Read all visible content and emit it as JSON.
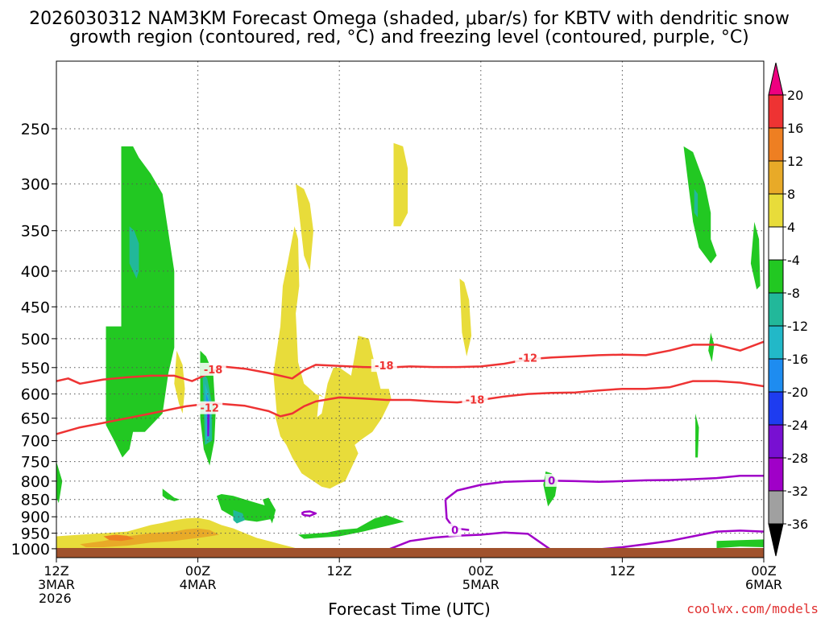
{
  "chart_data": {
    "type": "heatmap",
    "title_line1": "2026030312 NAM3KM Forecast Omega (shaded, μbar/s) for KBTV with dendritic snow",
    "title_line2": "growth region (contoured, red, °C) and freezing level (contoured, purple, °C)",
    "xlabel": "Forecast Time (UTC)",
    "credit": "coolwx.com/models",
    "x_ticks": [
      {
        "hour": 0,
        "line1": "12Z",
        "line2": "3MAR",
        "line3": "2026"
      },
      {
        "hour": 12,
        "line1": "00Z",
        "line2": "4MAR",
        "line3": ""
      },
      {
        "hour": 24,
        "line1": "12Z",
        "line2": "",
        "line3": ""
      },
      {
        "hour": 36,
        "line1": "00Z",
        "line2": "5MAR",
        "line3": ""
      },
      {
        "hour": 48,
        "line1": "12Z",
        "line2": "",
        "line3": ""
      },
      {
        "hour": 60,
        "line1": "00Z",
        "line2": "6MAR",
        "line3": ""
      }
    ],
    "x_range_hours": [
      0,
      60
    ],
    "y_ticks_hpa": [
      250,
      300,
      350,
      400,
      450,
      500,
      550,
      600,
      650,
      700,
      750,
      800,
      850,
      900,
      950,
      1000
    ],
    "y_range_hpa": [
      200,
      1030
    ],
    "y_scale": "log-pressure",
    "grid": "dotted",
    "colorbar_ticks": [
      20,
      16,
      12,
      8,
      4,
      -4,
      -8,
      -12,
      -16,
      -20,
      -24,
      -28,
      -32,
      -36
    ],
    "colorbar_colors": [
      "#ee0080",
      "#ee3333",
      "#ee7f22",
      "#e8aa28",
      "#e8dc3a",
      "#ffffff",
      "#22c822",
      "#22b89a",
      "#22b8c8",
      "#1e8cf0",
      "#1e3cf0",
      "#7810d2",
      "#a000c8",
      "#a0a0a0",
      "#000000"
    ],
    "colors": {
      "ascent_green": "#22c822",
      "ascent_teal": "#22b89a",
      "ascent_cyan": "#22b8c8",
      "ascent_blue": "#1e8cf0",
      "ascent_purple": "#7810d2",
      "descent_yellow": "#e8dc3a",
      "descent_orange": "#ee7f22",
      "ground": "#a0522d",
      "dgz_contour": "#ee3333",
      "freezing_contour": "#a000c8",
      "credit_text": "#e03030"
    },
    "contour_labels": [
      {
        "text": "-18",
        "color": "dgz"
      },
      {
        "text": "-12",
        "color": "dgz"
      },
      {
        "text": "-18",
        "color": "dgz"
      },
      {
        "text": "-12",
        "color": "dgz"
      },
      {
        "text": "-18",
        "color": "dgz"
      },
      {
        "text": "0",
        "color": "freeze"
      },
      {
        "text": "0",
        "color": "freeze"
      }
    ],
    "contours": {
      "dgz_minus18_upper": {
        "hours": [
          0,
          1,
          2,
          4,
          6,
          8,
          10,
          11.5,
          13,
          14,
          16,
          18,
          20,
          21,
          22,
          24,
          26,
          28,
          30,
          32,
          34,
          36,
          38,
          40,
          42,
          44,
          46,
          48,
          50,
          52,
          54,
          56,
          58,
          60
        ],
        "p": [
          575,
          570,
          580,
          572,
          568,
          565,
          565,
          575,
          560,
          548,
          552,
          560,
          570,
          555,
          545,
          547,
          549,
          550,
          548,
          549,
          549,
          548,
          543,
          535,
          532,
          530,
          528,
          527,
          528,
          520,
          510,
          510,
          520,
          505
        ]
      },
      "dgz_minus12_lower": {
        "hours": [
          0,
          2,
          4,
          6,
          8,
          10,
          11,
          12,
          13,
          14,
          16,
          18,
          19,
          20,
          21,
          22,
          24,
          26,
          28,
          30,
          32,
          34,
          36,
          38,
          40,
          42,
          44,
          46,
          48,
          50,
          52,
          54,
          56,
          58,
          60
        ],
        "p": [
          685,
          670,
          660,
          650,
          640,
          630,
          625,
          622,
          618,
          620,
          624,
          635,
          646,
          640,
          625,
          615,
          607,
          609,
          612,
          612,
          615,
          617,
          612,
          605,
          600,
          598,
          597,
          593,
          590,
          590,
          587,
          575,
          575,
          578,
          585
        ]
      },
      "freezing_mid": {
        "hours": [
          33,
          34,
          36,
          38,
          40,
          42,
          44,
          46,
          48,
          50,
          52,
          54,
          56,
          58,
          60
        ],
        "p": [
          850,
          825,
          810,
          802,
          800,
          799,
          800,
          802,
          800,
          798,
          797,
          795,
          792,
          786,
          786
        ]
      },
      "freezing_mid_kink": {
        "hours": [
          33,
          33.1,
          33.5,
          34,
          34.5,
          35
        ],
        "p": [
          850,
          905,
          925,
          935,
          938,
          940
        ]
      },
      "freezing_low": {
        "hours": [
          28,
          30,
          32,
          34,
          36,
          38,
          40,
          42,
          44,
          46,
          48,
          50,
          52,
          54,
          56,
          58,
          60
        ],
        "p": [
          1005,
          975,
          964,
          958,
          955,
          948,
          952,
          1005,
          1005,
          1002,
          995,
          985,
          975,
          960,
          945,
          942,
          945
        ]
      },
      "freezing_loop": {
        "hours": [
          20.8,
          21,
          21.5,
          22,
          21.5,
          21,
          20.8
        ],
        "p": [
          890,
          886,
          884,
          890,
          897,
          895,
          890
        ]
      }
    },
    "shaded_regions": [
      {
        "omega": -8,
        "hours": [
          5.5,
          6.5,
          7,
          8,
          9,
          10,
          10,
          9.5,
          9,
          7.5,
          6.5,
          6.2,
          5.6,
          4.9,
          4.2,
          4.2,
          5.5
        ],
        "p": [
          265,
          265,
          275,
          290,
          310,
          400,
          515,
          560,
          640,
          680,
          680,
          720,
          740,
          700,
          665,
          480,
          480
        ]
      },
      {
        "omega": -12,
        "hours": [
          6.2,
          6.6,
          7,
          7,
          6.8,
          6.2,
          6.2
        ],
        "p": [
          345,
          350,
          365,
          400,
          410,
          390,
          345
        ]
      },
      {
        "omega": -8,
        "hours": [
          12.2,
          12.7,
          13.3,
          13.5,
          13.4,
          13,
          12.5,
          12.2,
          12.2
        ],
        "p": [
          520,
          530,
          560,
          640,
          700,
          760,
          720,
          650,
          520
        ]
      },
      {
        "omega": -12,
        "hours": [
          12.4,
          12.8,
          13.2,
          13.2,
          12.6,
          12.4
        ],
        "p": [
          560,
          570,
          620,
          700,
          710,
          560
        ]
      },
      {
        "omega": -16,
        "hours": [
          12.6,
          12.9,
          13.1,
          13,
          12.7,
          12.6
        ],
        "p": [
          580,
          600,
          640,
          690,
          700,
          580
        ]
      },
      {
        "omega": -20,
        "hours": [
          12.7,
          13,
          13,
          12.8,
          12.7
        ],
        "p": [
          600,
          620,
          670,
          690,
          600
        ]
      },
      {
        "omega": -28,
        "hours": [
          12.8,
          13,
          12.95,
          12.8,
          12.8
        ],
        "p": [
          615,
          640,
          690,
          690,
          615
        ]
      },
      {
        "omega": -8,
        "hours": [
          0,
          0.5,
          0.2,
          0,
          0
        ],
        "p": [
          750,
          800,
          860,
          845,
          750
        ]
      },
      {
        "omega": -8,
        "hours": [
          9,
          10,
          10.5,
          10,
          9.3,
          9,
          9
        ],
        "p": [
          820,
          845,
          850,
          855,
          848,
          840,
          820
        ]
      },
      {
        "omega": -8,
        "hours": [
          13.6,
          14,
          15,
          16,
          17,
          18,
          18.5,
          17,
          16,
          15,
          14,
          13.6
        ],
        "p": [
          840,
          835,
          840,
          850,
          860,
          870,
          905,
          915,
          910,
          900,
          880,
          840
        ]
      },
      {
        "omega": -12,
        "hours": [
          15,
          15.8,
          16,
          15.3,
          15,
          15
        ],
        "p": [
          880,
          890,
          910,
          920,
          910,
          880
        ]
      },
      {
        "omega": -8,
        "hours": [
          17.5,
          18,
          18.6,
          18.3,
          17.8,
          17.5
        ],
        "p": [
          850,
          845,
          880,
          920,
          880,
          850
        ]
      },
      {
        "omega": -8,
        "hours": [
          20.5,
          23,
          24,
          25.5,
          27,
          28,
          29.5,
          26,
          24,
          22,
          21,
          20.5
        ],
        "p": [
          955,
          948,
          940,
          935,
          905,
          895,
          915,
          945,
          960,
          965,
          968,
          955
        ]
      },
      {
        "omega": -8,
        "hours": [
          41.5,
          42,
          42.5,
          42.3,
          41.7,
          41.3,
          41.5
        ],
        "p": [
          775,
          780,
          800,
          840,
          870,
          810,
          775
        ]
      },
      {
        "omega": -8,
        "hours": [
          53.2,
          54,
          55,
          55.5,
          55.5,
          56,
          55.5,
          54.5,
          54,
          53.2
        ],
        "p": [
          265,
          270,
          300,
          330,
          360,
          380,
          390,
          370,
          340,
          265
        ]
      },
      {
        "omega": -12,
        "hours": [
          54.1,
          54.4,
          54.4,
          54.1,
          54.1
        ],
        "p": [
          305,
          310,
          335,
          330,
          305
        ]
      },
      {
        "omega": -8,
        "hours": [
          59.2,
          59.6,
          59.7,
          59.4,
          58.9,
          59.2
        ],
        "p": [
          340,
          360,
          420,
          425,
          390,
          340
        ]
      },
      {
        "omega": -8,
        "hours": [
          55.5,
          55.8,
          55.6,
          55.3,
          55.5
        ],
        "p": [
          490,
          510,
          540,
          520,
          490
        ]
      },
      {
        "omega": -8,
        "hours": [
          54.2,
          54.5,
          54.4,
          54.2,
          54.2
        ],
        "p": [
          640,
          670,
          740,
          740,
          640
        ]
      },
      {
        "omega": -8,
        "hours": [
          56,
          58,
          60,
          60,
          58,
          56,
          56
        ],
        "p": [
          975,
          972,
          970,
          995,
          993,
          998,
          975
        ]
      },
      {
        "omega": 4,
        "hours": [
          10.2,
          10.7,
          10.9,
          10.7,
          10.4,
          10,
          10.2
        ],
        "p": [
          520,
          545,
          590,
          640,
          620,
          580,
          520
        ]
      },
      {
        "omega": 4,
        "hours": [
          19.2,
          19.6,
          20.2,
          20.5,
          20.6,
          20.3,
          20.5,
          21,
          22,
          23,
          23.4,
          22.3,
          22,
          21,
          20.8,
          20,
          19.8,
          18.7,
          18.4,
          19,
          19.2
        ],
        "p": [
          420,
          390,
          345,
          360,
          420,
          460,
          540,
          580,
          600,
          610,
          620,
          600,
          680,
          720,
          745,
          730,
          720,
          640,
          560,
          480,
          420
        ]
      },
      {
        "omega": 4,
        "hours": [
          20.3,
          21,
          21.5,
          21.8,
          21.5,
          21,
          20.3
        ],
        "p": [
          300,
          305,
          320,
          350,
          400,
          380,
          300
        ]
      },
      {
        "omega": 4,
        "hours": [
          18.5,
          20,
          21,
          21.5,
          21.8,
          22,
          22.5,
          23,
          23.5,
          24,
          25,
          25.6,
          26.5,
          27.5,
          28.2,
          28.4,
          27.6,
          26.8,
          26,
          25.3,
          25.6,
          24.5,
          23.8,
          23.2,
          22.5,
          21.8,
          20.8,
          20,
          19.5,
          19,
          18.5
        ],
        "p": [
          640,
          650,
          655,
          650,
          640,
          650,
          640,
          580,
          550,
          550,
          565,
          495,
          500,
          590,
          590,
          610,
          650,
          680,
          695,
          710,
          730,
          800,
          810,
          820,
          815,
          800,
          780,
          740,
          710,
          690,
          640
        ]
      },
      {
        "omega": 4,
        "hours": [
          28.6,
          29.4,
          29.8,
          29.8,
          29.2,
          28.6,
          28.6
        ],
        "p": [
          262,
          265,
          285,
          330,
          345,
          345,
          262
        ]
      },
      {
        "omega": 4,
        "hours": [
          34.2,
          34.6,
          35,
          35.2,
          34.8,
          34.4,
          34.2
        ],
        "p": [
          410,
          415,
          440,
          495,
          530,
          490,
          410
        ]
      },
      {
        "omega": 4,
        "hours": [
          0,
          2,
          4,
          6,
          7,
          8,
          9,
          10,
          11,
          12,
          13,
          14,
          15,
          16,
          17,
          18,
          19,
          20,
          20.5,
          19,
          18,
          16,
          14,
          12,
          10,
          8,
          6,
          4,
          2,
          0,
          0
        ],
        "p": [
          960,
          955,
          950,
          945,
          935,
          925,
          918,
          910,
          905,
          903,
          910,
          925,
          935,
          950,
          965,
          975,
          985,
          995,
          1000,
          1005,
          1003,
          1005,
          1008,
          1010,
          1010,
          1010,
          1010,
          1010,
          1010,
          1010,
          960
        ]
      },
      {
        "omega": 8,
        "hours": [
          2,
          4,
          6,
          8,
          10,
          11,
          12,
          13,
          13.8,
          13,
          12,
          10,
          8,
          6,
          4,
          2.5,
          2
        ],
        "p": [
          985,
          975,
          960,
          950,
          945,
          938,
          935,
          940,
          955,
          960,
          965,
          975,
          980,
          990,
          995,
          995,
          985
        ]
      },
      {
        "omega": 12,
        "hours": [
          4,
          5,
          6,
          6.6,
          5.5,
          4.5,
          4
        ],
        "p": [
          960,
          955,
          958,
          968,
          975,
          972,
          960
        ]
      }
    ]
  }
}
